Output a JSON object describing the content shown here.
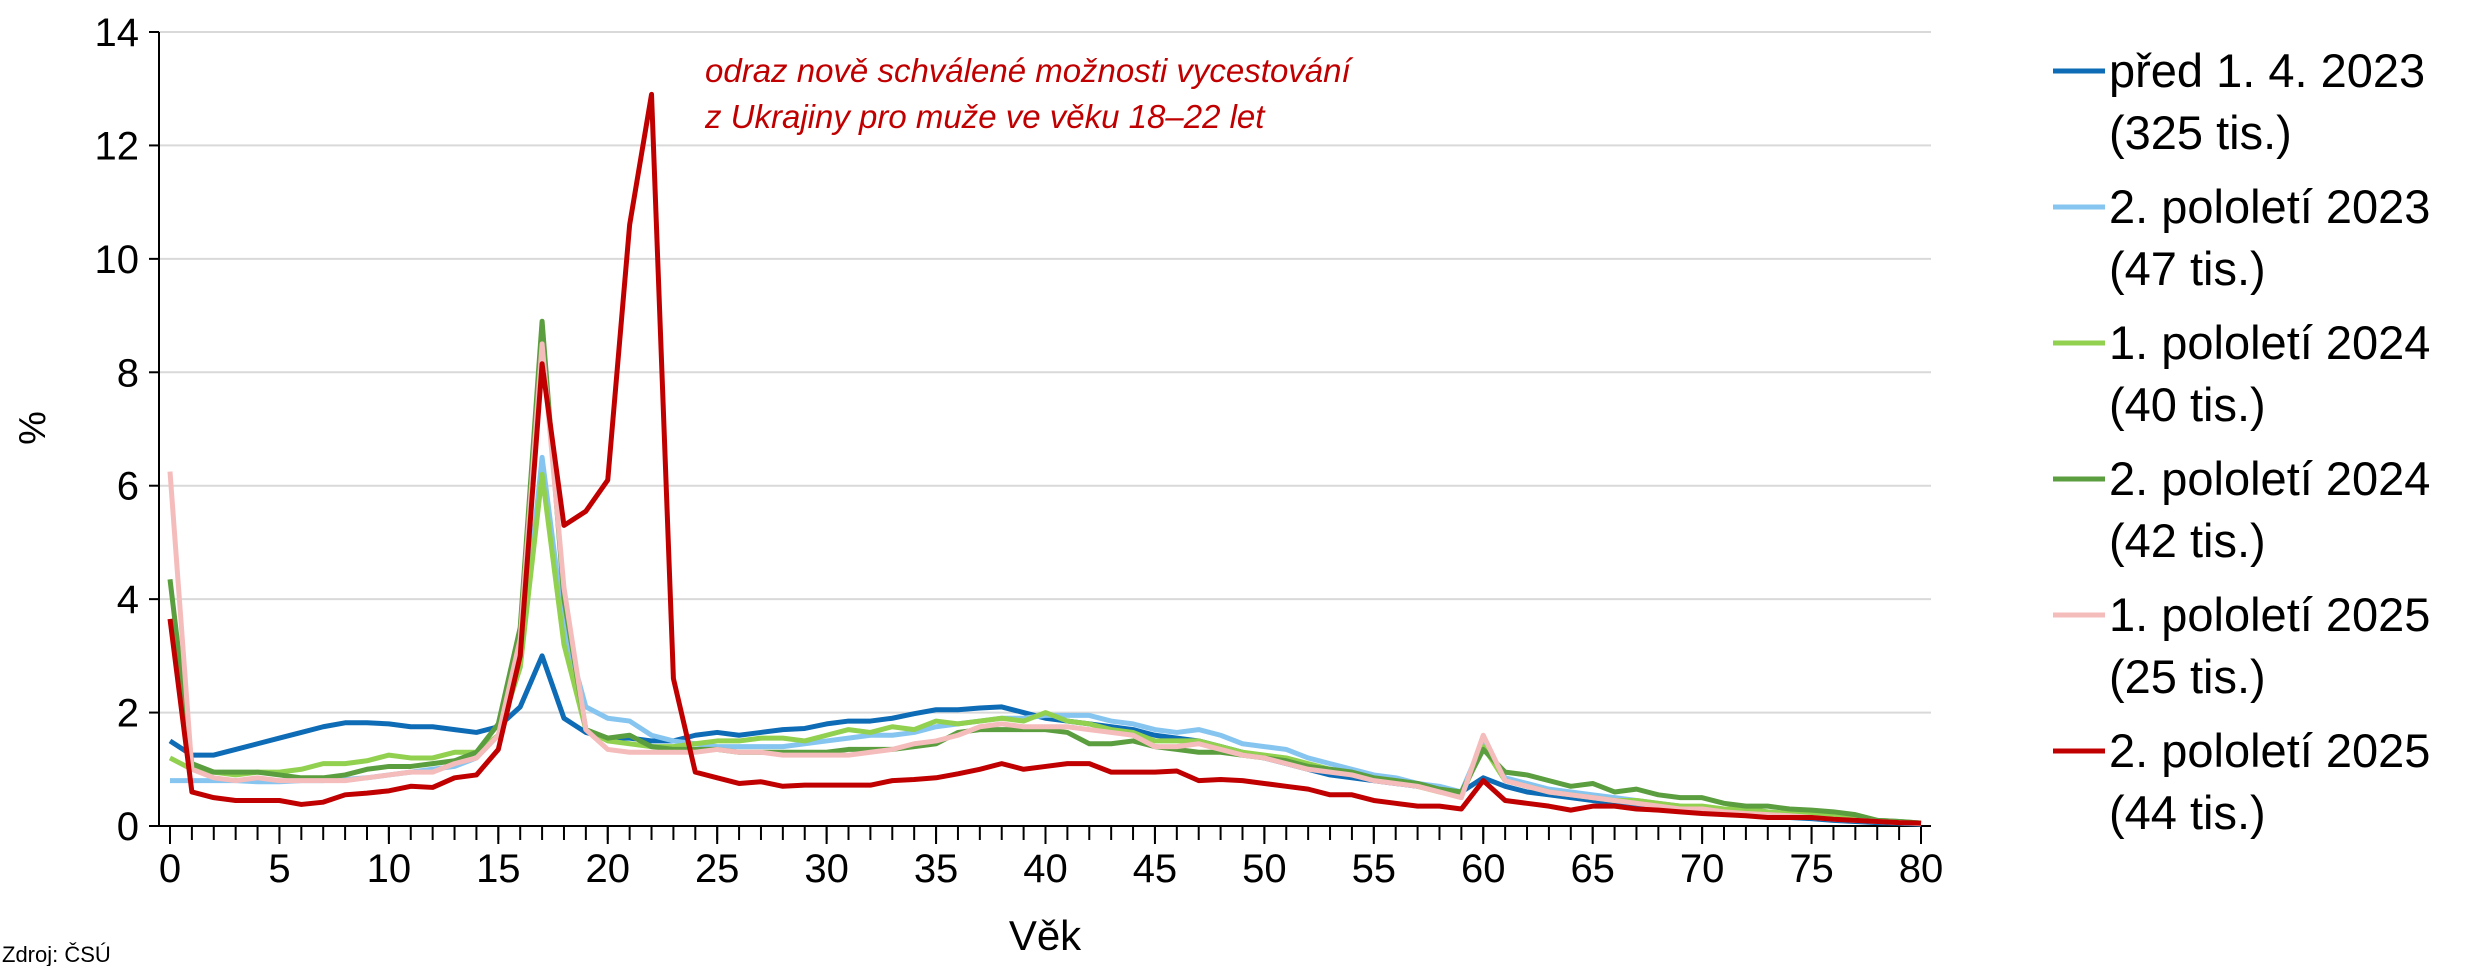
{
  "chart_data": {
    "type": "line",
    "annotation": [
      "odraz nově schválené možnosti vycestování",
      "z Ukrajiny pro muže ve věku 18–22 let"
    ],
    "xlabel": "Věk",
    "ylabel": "%",
    "source": "Zdroj: ČSÚ",
    "x": [
      0,
      1,
      2,
      3,
      4,
      5,
      6,
      7,
      8,
      9,
      10,
      11,
      12,
      13,
      14,
      15,
      16,
      17,
      18,
      19,
      20,
      21,
      22,
      23,
      24,
      25,
      26,
      27,
      28,
      29,
      30,
      31,
      32,
      33,
      34,
      35,
      36,
      37,
      38,
      39,
      40,
      41,
      42,
      43,
      44,
      45,
      46,
      47,
      48,
      49,
      50,
      51,
      52,
      53,
      54,
      55,
      56,
      57,
      58,
      59,
      60,
      61,
      62,
      63,
      64,
      65,
      66,
      67,
      68,
      69,
      70,
      71,
      72,
      73,
      74,
      75,
      76,
      77,
      78,
      79,
      80
    ],
    "xlim": [
      0,
      80
    ],
    "xticks": [
      0,
      5,
      10,
      15,
      20,
      25,
      30,
      35,
      40,
      45,
      50,
      55,
      60,
      65,
      70,
      75,
      80
    ],
    "ylim": [
      0,
      14
    ],
    "yticks": [
      0,
      2,
      4,
      6,
      8,
      10,
      12,
      14
    ],
    "grid": true,
    "legend": "right",
    "series": [
      {
        "name": "před 1. 4. 2023 (325 tis.)",
        "color": "#0e6bb5",
        "values": [
          1.5,
          1.25,
          1.25,
          1.35,
          1.45,
          1.55,
          1.65,
          1.75,
          1.82,
          1.82,
          1.8,
          1.75,
          1.75,
          1.7,
          1.65,
          1.75,
          2.1,
          3.0,
          1.9,
          1.65,
          1.55,
          1.55,
          1.5,
          1.5,
          1.6,
          1.65,
          1.6,
          1.65,
          1.7,
          1.72,
          1.8,
          1.85,
          1.85,
          1.9,
          1.98,
          2.05,
          2.05,
          2.08,
          2.1,
          2.0,
          1.9,
          1.85,
          1.8,
          1.75,
          1.7,
          1.6,
          1.55,
          1.5,
          1.4,
          1.3,
          1.2,
          1.1,
          1.0,
          0.9,
          0.85,
          0.8,
          0.75,
          0.7,
          0.65,
          0.6,
          0.85,
          0.7,
          0.6,
          0.55,
          0.5,
          0.45,
          0.4,
          0.35,
          0.3,
          0.28,
          0.25,
          0.22,
          0.2,
          0.18,
          0.15,
          0.13,
          0.1,
          0.08,
          0.06,
          0.05,
          0.03
        ]
      },
      {
        "name": "2. pololetí 2023 (47 tis.)",
        "color": "#86c5f0",
        "values": [
          0.8,
          0.8,
          0.8,
          0.8,
          0.78,
          0.78,
          0.8,
          0.8,
          0.82,
          0.85,
          0.9,
          0.95,
          1.0,
          1.05,
          1.2,
          1.6,
          2.8,
          6.5,
          3.5,
          2.1,
          1.9,
          1.85,
          1.6,
          1.5,
          1.45,
          1.4,
          1.4,
          1.4,
          1.4,
          1.45,
          1.5,
          1.55,
          1.6,
          1.6,
          1.65,
          1.75,
          1.8,
          1.85,
          1.9,
          1.9,
          1.95,
          1.95,
          1.95,
          1.85,
          1.8,
          1.7,
          1.65,
          1.7,
          1.6,
          1.45,
          1.4,
          1.35,
          1.2,
          1.1,
          1.0,
          0.9,
          0.85,
          0.75,
          0.7,
          0.6,
          1.5,
          0.85,
          0.75,
          0.65,
          0.6,
          0.55,
          0.5,
          0.45,
          0.4,
          0.35,
          0.3,
          0.28,
          0.25,
          0.22,
          0.2,
          0.18,
          0.15,
          0.12,
          0.1,
          0.08,
          0.05
        ]
      },
      {
        "name": "1. pololetí 2024 (40 tis.)",
        "color": "#92d050",
        "values": [
          1.2,
          1.0,
          0.95,
          0.9,
          0.95,
          0.95,
          1.0,
          1.1,
          1.1,
          1.15,
          1.25,
          1.2,
          1.2,
          1.3,
          1.3,
          1.6,
          2.8,
          6.2,
          3.2,
          1.7,
          1.5,
          1.45,
          1.4,
          1.4,
          1.45,
          1.5,
          1.5,
          1.55,
          1.55,
          1.5,
          1.6,
          1.7,
          1.65,
          1.75,
          1.7,
          1.85,
          1.8,
          1.85,
          1.9,
          1.85,
          2.0,
          1.85,
          1.8,
          1.7,
          1.65,
          1.5,
          1.5,
          1.5,
          1.4,
          1.3,
          1.25,
          1.2,
          1.1,
          1.0,
          0.9,
          0.85,
          0.8,
          0.7,
          0.6,
          0.55,
          1.4,
          0.8,
          0.7,
          0.6,
          0.55,
          0.5,
          0.45,
          0.45,
          0.4,
          0.35,
          0.35,
          0.3,
          0.3,
          0.25,
          0.22,
          0.2,
          0.18,
          0.15,
          0.1,
          0.08,
          0.05
        ]
      },
      {
        "name": "2. pololetí 2024 (42 tis.)",
        "color": "#5b9e3f",
        "values": [
          4.35,
          1.1,
          0.95,
          0.95,
          0.95,
          0.9,
          0.85,
          0.85,
          0.9,
          1.0,
          1.05,
          1.05,
          1.1,
          1.15,
          1.3,
          1.8,
          3.5,
          8.9,
          4.0,
          1.7,
          1.55,
          1.6,
          1.4,
          1.35,
          1.35,
          1.35,
          1.3,
          1.3,
          1.3,
          1.3,
          1.3,
          1.35,
          1.35,
          1.35,
          1.4,
          1.45,
          1.65,
          1.7,
          1.7,
          1.7,
          1.7,
          1.65,
          1.45,
          1.45,
          1.5,
          1.4,
          1.35,
          1.3,
          1.3,
          1.25,
          1.2,
          1.15,
          1.05,
          1.0,
          0.95,
          0.85,
          0.8,
          0.75,
          0.65,
          0.6,
          1.35,
          0.95,
          0.9,
          0.8,
          0.7,
          0.75,
          0.6,
          0.65,
          0.55,
          0.5,
          0.5,
          0.4,
          0.35,
          0.35,
          0.3,
          0.28,
          0.25,
          0.2,
          0.1,
          0.08,
          0.05
        ]
      },
      {
        "name": "1. pololetí 2025 (25 tis.)",
        "color": "#f5bcbc",
        "values": [
          6.25,
          1.0,
          0.85,
          0.8,
          0.85,
          0.8,
          0.8,
          0.8,
          0.8,
          0.85,
          0.9,
          0.95,
          0.95,
          1.1,
          1.2,
          1.6,
          3.3,
          8.5,
          4.2,
          1.7,
          1.35,
          1.3,
          1.3,
          1.3,
          1.3,
          1.35,
          1.3,
          1.3,
          1.25,
          1.25,
          1.25,
          1.25,
          1.3,
          1.35,
          1.45,
          1.5,
          1.6,
          1.75,
          1.8,
          1.75,
          1.75,
          1.75,
          1.7,
          1.65,
          1.6,
          1.4,
          1.4,
          1.45,
          1.35,
          1.25,
          1.2,
          1.1,
          1.0,
          0.95,
          0.9,
          0.8,
          0.75,
          0.7,
          0.6,
          0.5,
          1.6,
          0.8,
          0.7,
          0.6,
          0.55,
          0.5,
          0.45,
          0.4,
          0.35,
          0.3,
          0.3,
          0.25,
          0.22,
          0.2,
          0.18,
          0.15,
          0.12,
          0.1,
          0.08,
          0.06,
          0.04
        ]
      },
      {
        "name": "2. pololetí 2025 (44 tis.)",
        "color": "#c00000",
        "values": [
          3.65,
          0.6,
          0.5,
          0.45,
          0.45,
          0.45,
          0.38,
          0.42,
          0.55,
          0.58,
          0.62,
          0.7,
          0.68,
          0.85,
          0.9,
          1.35,
          3.0,
          8.15,
          5.3,
          5.55,
          6.1,
          10.6,
          12.9,
          2.6,
          0.95,
          0.85,
          0.75,
          0.78,
          0.7,
          0.72,
          0.72,
          0.72,
          0.72,
          0.8,
          0.82,
          0.85,
          0.92,
          1.0,
          1.1,
          1.0,
          1.05,
          1.1,
          1.1,
          0.95,
          0.95,
          0.95,
          0.97,
          0.8,
          0.82,
          0.8,
          0.75,
          0.7,
          0.65,
          0.55,
          0.55,
          0.45,
          0.4,
          0.35,
          0.35,
          0.3,
          0.8,
          0.45,
          0.4,
          0.35,
          0.28,
          0.35,
          0.35,
          0.3,
          0.28,
          0.25,
          0.22,
          0.2,
          0.18,
          0.15,
          0.15,
          0.15,
          0.12,
          0.1,
          0.08,
          0.06,
          0.05
        ]
      }
    ]
  }
}
